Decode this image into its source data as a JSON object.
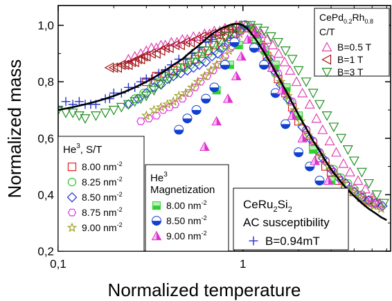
{
  "chart_data": {
    "type": "scatter",
    "xlabel": "Normalized temperature",
    "ylabel": "Normalized mass",
    "xscale": "log",
    "xlim": [
      0.1,
      6.3
    ],
    "ylim": [
      0.2,
      1.07
    ],
    "xticks": [
      {
        "v": 0.1,
        "label": "0,1"
      },
      {
        "v": 1,
        "label": "1"
      }
    ],
    "yticks": [
      {
        "v": 0.2,
        "label": "0,2"
      },
      {
        "v": 0.4,
        "label": "0,4"
      },
      {
        "v": 0.6,
        "label": "0,6"
      },
      {
        "v": 0.8,
        "label": "0,8"
      },
      {
        "v": 1.0,
        "label": "1,0"
      }
    ],
    "legends": {
      "he3_st": {
        "title_base": "He",
        "title_sup": "3",
        "title_rest": ", S/T",
        "entries": [
          {
            "label": "8.00 nm",
            "sup": "-2",
            "series": 0
          },
          {
            "label": "8.25 nm",
            "sup": "-2",
            "series": 1
          },
          {
            "label": "8.50 nm",
            "sup": "-2",
            "series": 2
          },
          {
            "label": "8.75 nm",
            "sup": "-2",
            "series": 3
          },
          {
            "label": "9.00 nm",
            "sup": "-2",
            "series": 4
          }
        ]
      },
      "he3_mag": {
        "title_base": "He",
        "title_sup": "3",
        "title_line2": "Magnetization",
        "entries": [
          {
            "label": "8.00 nm",
            "sup": "-2",
            "series": 5
          },
          {
            "label": "8.50 nm",
            "sup": "-2",
            "series": 6
          },
          {
            "label": "9.00 nm",
            "sup": "-2",
            "series": 7
          }
        ]
      },
      "cepdrh": {
        "title_a": "CePd",
        "sub_a": "0.2",
        "title_b": "Rh",
        "sub_b": "0.8",
        "title_line2": "C/T",
        "entries": [
          {
            "label": "B=0.5 T",
            "series": 8
          },
          {
            "label": "B=1 T",
            "series": 9
          },
          {
            "label": "B=3 T",
            "series": 10
          }
        ]
      },
      "ceru": {
        "title_a": "CeRu",
        "sub_a": "2",
        "title_b": "Si",
        "sub_b": "2",
        "title_line2": "AC susceptibility",
        "entries": [
          {
            "label": "B=0.94mT",
            "series": 11
          }
        ]
      }
    },
    "series": [
      {
        "marker": "square",
        "color": "#e02020",
        "x": [
          0.3,
          0.34,
          0.38,
          0.42,
          0.46,
          0.5,
          0.55,
          0.6,
          0.65,
          0.7,
          0.76,
          0.82,
          0.88,
          0.93,
          1.0,
          1.08,
          1.16,
          1.25,
          1.35,
          1.45,
          1.55,
          1.7,
          1.85,
          2.0,
          2.2,
          2.4,
          2.6,
          2.8,
          3.0,
          3.3,
          3.6,
          4.0,
          4.4,
          4.8,
          5.2
        ],
        "y": [
          0.8,
          0.82,
          0.83,
          0.84,
          0.85,
          0.87,
          0.88,
          0.9,
          0.91,
          0.93,
          0.94,
          0.96,
          0.97,
          0.99,
          1.0,
          0.99,
          0.96,
          0.93,
          0.89,
          0.85,
          0.81,
          0.76,
          0.71,
          0.66,
          0.61,
          0.57,
          0.53,
          0.5,
          0.48,
          0.45,
          0.43,
          0.41,
          0.39,
          0.38,
          0.37
        ]
      },
      {
        "marker": "circle",
        "color": "#30c030",
        "x": [
          0.26,
          0.29,
          0.32,
          0.35,
          0.38,
          0.41,
          0.44,
          0.48,
          0.52,
          0.56,
          0.6,
          0.65,
          0.7,
          0.75,
          0.8,
          0.86,
          0.92,
          0.98,
          1.05,
          1.12,
          1.2,
          1.3,
          1.4,
          1.5,
          1.65,
          1.8,
          2.0,
          2.2,
          2.4,
          2.6,
          2.8,
          3.1,
          3.4,
          3.7,
          4.0,
          4.4,
          4.8,
          5.2
        ],
        "y": [
          0.74,
          0.76,
          0.78,
          0.8,
          0.82,
          0.83,
          0.84,
          0.85,
          0.86,
          0.87,
          0.88,
          0.9,
          0.91,
          0.92,
          0.93,
          0.95,
          0.97,
          0.99,
          1.0,
          0.98,
          0.95,
          0.91,
          0.87,
          0.83,
          0.78,
          0.73,
          0.68,
          0.63,
          0.59,
          0.55,
          0.52,
          0.49,
          0.46,
          0.44,
          0.42,
          0.4,
          0.38,
          0.37
        ]
      },
      {
        "marker": "diamond",
        "color": "#2030e0",
        "x": [
          0.24,
          0.27,
          0.3,
          0.33,
          0.36,
          0.39,
          0.42,
          0.46,
          0.5,
          0.54,
          0.58,
          0.63,
          0.68,
          0.73,
          0.78,
          0.84,
          0.9,
          0.96,
          1.02,
          1.1,
          1.18,
          1.27,
          1.37,
          1.47,
          1.6,
          1.75,
          1.9,
          2.1,
          2.3,
          2.5,
          2.7,
          3.0,
          3.3,
          3.6,
          4.0,
          4.4,
          4.8,
          5.2,
          5.7
        ],
        "y": [
          0.72,
          0.74,
          0.76,
          0.78,
          0.79,
          0.81,
          0.82,
          0.83,
          0.84,
          0.85,
          0.86,
          0.87,
          0.89,
          0.9,
          0.92,
          0.94,
          0.96,
          0.98,
          1.0,
          0.99,
          0.96,
          0.92,
          0.88,
          0.84,
          0.79,
          0.74,
          0.69,
          0.64,
          0.6,
          0.56,
          0.53,
          0.49,
          0.46,
          0.44,
          0.41,
          0.39,
          0.38,
          0.37,
          0.36
        ]
      },
      {
        "marker": "hexagon",
        "color": "#e030e0",
        "x": [
          0.28,
          0.31,
          0.34,
          0.37,
          0.4,
          0.43,
          0.47,
          0.51,
          0.55,
          0.59,
          0.64,
          0.69,
          0.74,
          0.8,
          0.86,
          0.92,
          0.98,
          1.05,
          1.13,
          1.22,
          1.32,
          1.42,
          1.55,
          1.7,
          1.85,
          2.0,
          2.2,
          2.4,
          2.6,
          2.8,
          3.1,
          3.4,
          3.8,
          4.2,
          4.6,
          5.0,
          5.5
        ],
        "y": [
          0.66,
          0.67,
          0.68,
          0.7,
          0.71,
          0.72,
          0.74,
          0.76,
          0.78,
          0.8,
          0.82,
          0.84,
          0.86,
          0.89,
          0.92,
          0.95,
          0.98,
          1.0,
          0.99,
          0.96,
          0.92,
          0.88,
          0.83,
          0.78,
          0.73,
          0.68,
          0.63,
          0.59,
          0.55,
          0.52,
          0.48,
          0.45,
          0.42,
          0.4,
          0.38,
          0.37,
          0.36
        ]
      },
      {
        "marker": "star",
        "color": "#a0a020",
        "x": [
          0.3,
          0.33,
          0.36,
          0.39,
          0.42,
          0.45,
          0.49,
          0.53,
          0.57,
          0.62,
          0.67,
          0.72,
          0.78,
          0.84,
          0.9,
          0.96,
          1.03,
          1.1,
          1.18,
          1.27,
          1.37,
          1.48,
          1.6,
          1.75,
          1.9,
          2.05,
          2.25,
          2.45,
          2.65,
          2.9,
          3.2,
          3.5,
          3.9,
          4.3,
          4.7,
          5.1,
          5.6
        ],
        "y": [
          0.68,
          0.7,
          0.71,
          0.72,
          0.73,
          0.75,
          0.76,
          0.78,
          0.8,
          0.82,
          0.84,
          0.86,
          0.88,
          0.91,
          0.94,
          0.97,
          1.0,
          0.99,
          0.97,
          0.93,
          0.89,
          0.85,
          0.8,
          0.75,
          0.7,
          0.66,
          0.61,
          0.57,
          0.54,
          0.5,
          0.47,
          0.44,
          0.41,
          0.39,
          0.37,
          0.36,
          0.35
        ]
      },
      {
        "marker": "halfsquare",
        "color": "#30d030",
        "x": [
          0.72,
          0.85,
          0.95,
          1.06,
          1.18,
          1.32,
          1.5,
          1.72,
          2.0,
          2.4,
          3.0
        ],
        "y": [
          0.77,
          0.86,
          0.93,
          1.0,
          0.94,
          0.91,
          0.86,
          0.78,
          0.68,
          0.56,
          0.45
        ]
      },
      {
        "marker": "halfcircle",
        "color": "#1040d0",
        "x": [
          0.45,
          0.5,
          0.56,
          0.63,
          0.7,
          0.8,
          0.9,
          1.03,
          1.15,
          1.3,
          1.5,
          1.7,
          2.0,
          2.3,
          2.6
        ],
        "y": [
          0.63,
          0.67,
          0.7,
          0.74,
          0.78,
          0.86,
          0.94,
          1.0,
          0.92,
          0.86,
          0.76,
          0.65,
          0.55,
          0.5,
          0.45
        ]
      },
      {
        "marker": "halftriangle",
        "color": "#e030d0",
        "x": [
          0.62,
          0.72,
          0.83,
          0.92,
          0.98,
          1.06,
          1.15,
          1.28,
          1.44,
          1.62,
          1.85,
          2.1,
          2.45,
          2.9
        ],
        "y": [
          0.57,
          0.66,
          0.74,
          0.82,
          0.89,
          0.95,
          0.97,
          0.92,
          0.85,
          0.77,
          0.68,
          0.6,
          0.52,
          0.45
        ]
      },
      {
        "marker": "triangle-up",
        "color": "#e040b0",
        "x": [
          0.24,
          0.26,
          0.28,
          0.3,
          0.32,
          0.34,
          0.36,
          0.38,
          0.41,
          0.44,
          0.47,
          0.5,
          0.54,
          0.58,
          0.62,
          0.66,
          0.7,
          0.75,
          0.8,
          0.86,
          0.92,
          0.98,
          1.04,
          1.11,
          1.18,
          1.26,
          1.35,
          1.45,
          1.56,
          1.68,
          1.8,
          1.95,
          2.1,
          2.3,
          2.5,
          2.7,
          2.95,
          3.2,
          3.5,
          3.8,
          4.2,
          4.6,
          5.0,
          5.5
        ],
        "y": [
          0.88,
          0.89,
          0.9,
          0.91,
          0.92,
          0.92,
          0.93,
          0.93,
          0.94,
          0.94,
          0.95,
          0.95,
          0.96,
          0.96,
          0.97,
          0.97,
          0.98,
          0.98,
          0.99,
          0.99,
          1.0,
          1.0,
          1.0,
          0.99,
          0.98,
          0.97,
          0.95,
          0.93,
          0.9,
          0.87,
          0.84,
          0.8,
          0.76,
          0.72,
          0.67,
          0.63,
          0.59,
          0.55,
          0.51,
          0.48,
          0.45,
          0.42,
          0.39,
          0.37
        ]
      },
      {
        "marker": "triangle-left",
        "color": "#a01010",
        "x": [
          0.19,
          0.2,
          0.21,
          0.22,
          0.23,
          0.24,
          0.25,
          0.26,
          0.27,
          0.28,
          0.29,
          0.3,
          0.32,
          0.34,
          0.36,
          0.38,
          0.4,
          0.43,
          0.46,
          0.49,
          0.52,
          0.56,
          0.6,
          0.64,
          0.68,
          0.72,
          0.76,
          0.8,
          0.84,
          0.88
        ],
        "y": [
          0.85,
          0.85,
          0.85,
          0.86,
          0.86,
          0.86,
          0.87,
          0.87,
          0.88,
          0.88,
          0.89,
          0.89,
          0.9,
          0.9,
          0.91,
          0.92,
          0.92,
          0.93,
          0.93,
          0.94,
          0.94,
          0.95,
          0.96,
          0.96,
          0.97,
          0.97,
          0.98,
          0.98,
          0.99,
          0.99
        ]
      },
      {
        "marker": "triangle-down",
        "color": "#209020",
        "x": [
          0.1,
          0.11,
          0.12,
          0.13,
          0.14,
          0.16,
          0.18,
          0.2,
          0.22,
          0.24,
          0.26,
          0.28,
          0.3,
          0.33,
          0.36,
          0.4,
          0.44,
          0.48,
          0.52,
          0.57,
          0.62,
          0.68,
          0.74,
          0.8,
          0.87,
          0.94,
          1.02,
          1.1,
          1.2,
          1.3,
          1.42,
          1.55,
          1.7,
          1.85,
          2.0,
          2.2,
          2.4,
          2.6,
          2.85,
          3.1,
          3.4,
          3.7,
          4.0,
          4.4,
          4.8,
          5.3,
          5.8
        ],
        "y": [
          0.7,
          0.69,
          0.69,
          0.68,
          0.67,
          0.68,
          0.69,
          0.7,
          0.71,
          0.72,
          0.73,
          0.74,
          0.75,
          0.77,
          0.79,
          0.81,
          0.83,
          0.85,
          0.87,
          0.89,
          0.91,
          0.93,
          0.95,
          0.96,
          0.98,
          0.99,
          1.0,
          1.0,
          0.99,
          0.98,
          0.96,
          0.94,
          0.91,
          0.88,
          0.84,
          0.8,
          0.76,
          0.72,
          0.68,
          0.64,
          0.6,
          0.56,
          0.52,
          0.48,
          0.44,
          0.4,
          0.37
        ]
      },
      {
        "marker": "plus",
        "color": "#2030d0",
        "x": [
          0.1,
          0.11,
          0.12,
          0.13,
          0.14,
          0.15,
          0.16,
          0.18,
          0.19,
          0.2,
          0.22,
          0.24,
          0.26,
          0.28,
          0.3,
          0.32,
          0.35,
          0.38,
          0.41,
          0.45,
          0.49,
          0.53,
          0.58,
          0.63,
          0.68
        ],
        "y": [
          0.71,
          0.73,
          0.72,
          0.73,
          0.72,
          0.72,
          0.72,
          0.74,
          0.74,
          0.76,
          0.76,
          0.78,
          0.78,
          0.8,
          0.81,
          0.81,
          0.83,
          0.84,
          0.86,
          0.88,
          0.88,
          0.9,
          0.92,
          0.94,
          0.95
        ]
      }
    ],
    "curve": {
      "color": "#000000",
      "x": [
        0.1,
        0.12,
        0.14,
        0.16,
        0.18,
        0.2,
        0.23,
        0.26,
        0.3,
        0.34,
        0.38,
        0.42,
        0.47,
        0.52,
        0.58,
        0.64,
        0.7,
        0.77,
        0.84,
        0.9,
        0.95,
        1.0,
        1.05,
        1.1,
        1.16,
        1.23,
        1.3,
        1.4,
        1.5,
        1.62,
        1.75,
        1.9,
        2.05,
        2.2,
        2.4,
        2.6,
        2.8,
        3.0,
        3.3,
        3.6,
        4.0,
        4.4,
        4.8,
        5.2,
        5.6,
        6.0
      ],
      "y": [
        0.7,
        0.71,
        0.72,
        0.73,
        0.74,
        0.75,
        0.765,
        0.78,
        0.8,
        0.82,
        0.84,
        0.86,
        0.88,
        0.905,
        0.93,
        0.955,
        0.975,
        0.99,
        1.0,
        1.005,
        1.005,
        1.0,
        0.99,
        0.975,
        0.955,
        0.93,
        0.905,
        0.87,
        0.835,
        0.795,
        0.755,
        0.71,
        0.67,
        0.635,
        0.59,
        0.555,
        0.52,
        0.49,
        0.455,
        0.425,
        0.395,
        0.37,
        0.35,
        0.335,
        0.32,
        0.31
      ]
    }
  }
}
